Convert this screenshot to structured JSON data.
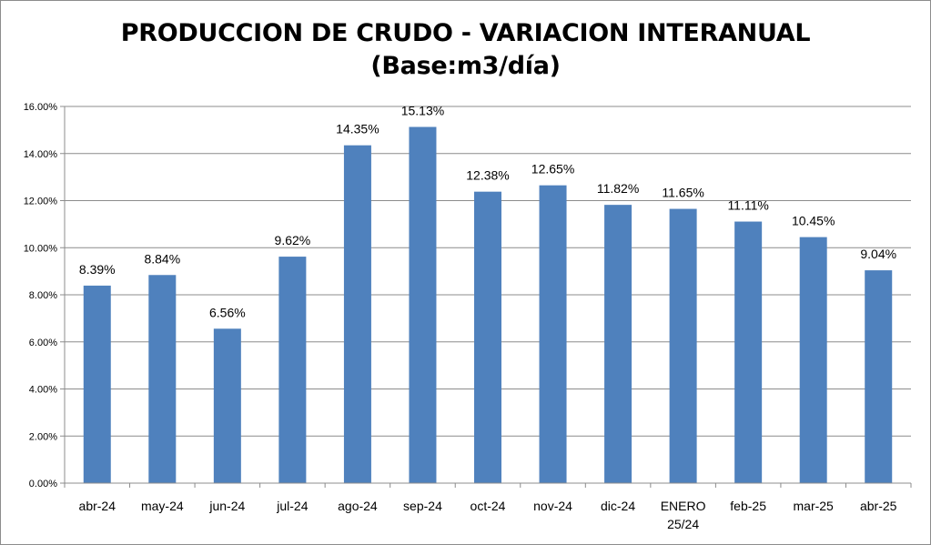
{
  "chart_data": {
    "type": "bar",
    "title_line1": "PRODUCCION DE CRUDO - VARIACION INTERANUAL",
    "title_line2": "(Base:m3/día)",
    "xlabel": "",
    "ylabel": "",
    "categories": [
      "abr-24",
      "may-24",
      "jun-24",
      "jul-24",
      "ago-24",
      "sep-24",
      "oct-24",
      "nov-24",
      "dic-24",
      "ENERO 25/24",
      "feb-25",
      "mar-25",
      "abr-25"
    ],
    "values": [
      8.39,
      8.84,
      6.56,
      9.62,
      14.35,
      15.13,
      12.38,
      12.65,
      11.82,
      11.65,
      11.11,
      10.45,
      9.04
    ],
    "value_labels": [
      "8.39%",
      "8.84%",
      "6.56%",
      "9.62%",
      "14.35%",
      "15.13%",
      "12.38%",
      "12.65%",
      "11.82%",
      "11.65%",
      "11.11%",
      "10.45%",
      "9.04%"
    ],
    "yticks": [
      "0.00%",
      "2.00%",
      "4.00%",
      "6.00%",
      "8.00%",
      "10.00%",
      "12.00%",
      "14.00%",
      "16.00%"
    ],
    "ylim": [
      0,
      16
    ],
    "grid": true,
    "legend": "none",
    "bar_color": "#4f81bd",
    "grid_color": "#8c8c8c"
  }
}
